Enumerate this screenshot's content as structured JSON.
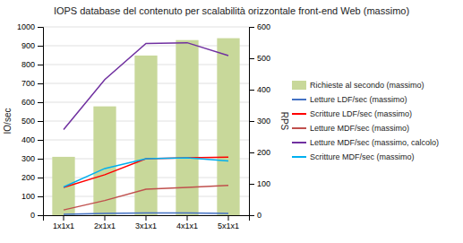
{
  "chart_data": {
    "type": "bar",
    "title": "IOPS database del contenuto per scalabilità orizzontale front-end Web (massimo)",
    "categories": [
      "1x1x1",
      "2x1x1",
      "3x1x1",
      "4x1x1",
      "5x1x1"
    ],
    "series": [
      {
        "name": "Richieste al secondo (massimo)",
        "type": "bar",
        "color": "#c8d89a",
        "values": [
          310,
          578,
          848,
          930,
          940
        ]
      },
      {
        "name": "Letture LDF/sec (massimo)",
        "type": "line",
        "color": "#4472c4",
        "values": [
          5,
          10,
          12,
          12,
          10
        ]
      },
      {
        "name": "Scritture LDF/sec (massimo)",
        "type": "line",
        "color": "#ff0000",
        "values": [
          148,
          215,
          300,
          305,
          308
        ]
      },
      {
        "name": "Letture MDF/sec (massimo)",
        "type": "line",
        "color": "#c0504d",
        "values": [
          28,
          78,
          138,
          148,
          158
        ]
      },
      {
        "name": "Letture MDF/sec (massimo, calcolo)",
        "type": "line",
        "color": "#7030a0",
        "values": [
          455,
          720,
          912,
          916,
          848
        ]
      },
      {
        "name": "Scritture MDF/sec (massimo)",
        "type": "line",
        "color": "#00b0f0",
        "values": [
          150,
          248,
          300,
          305,
          288
        ]
      }
    ],
    "ylabel": "IO/sec",
    "y2label": "RPS",
    "ylim": [
      0,
      1000
    ],
    "yticks": [
      0,
      100,
      200,
      300,
      400,
      500,
      600,
      700,
      800,
      900,
      1000
    ],
    "y2lim": [
      0,
      600
    ],
    "y2ticks": [
      0,
      100,
      200,
      300,
      400,
      500,
      600
    ],
    "grid": true
  }
}
